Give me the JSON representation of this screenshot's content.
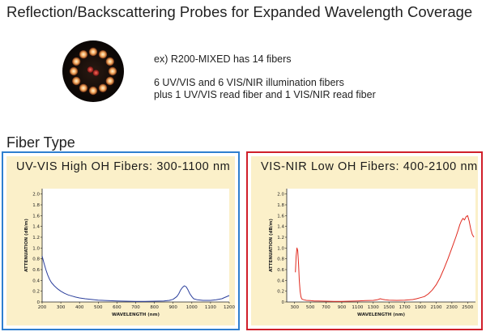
{
  "header": {
    "title": "Reflection/Backscattering Probes for Expanded Wavelength Coverage"
  },
  "description": {
    "line1": "ex) R200-MIXED has 14 fibers",
    "line2": "6 UV/VIS and 6 VIS/NIR illumination fibers",
    "line3": "plus 1 UV/VIS read fiber and 1 VIS/NIR read fiber"
  },
  "section": {
    "title": "Fiber Type"
  },
  "colors": {
    "uv_border": "#2f7fd0",
    "nir_border": "#d01f2a",
    "panel_bg": "#fbf0c9",
    "uv_curve": "#2b3f9c",
    "nir_curve": "#e02a1f"
  },
  "chart_data": [
    {
      "type": "line",
      "title": "UV-VIS High OH Fibers: 300-1100 nm",
      "xlabel": "WAVELENGTH (nm)",
      "ylabel": "ATTENUATION (dB/m)",
      "xlim": [
        200,
        1200
      ],
      "ylim": [
        0,
        2.1
      ],
      "xticks": [
        "200",
        "300",
        "400",
        "500",
        "600",
        "700",
        "800",
        "900",
        "1000",
        "1100",
        "1200"
      ],
      "yticks": [
        "0",
        "0.2",
        "0.4",
        "0.6",
        "0.8",
        "1.0",
        "1.2",
        "1.4",
        "1.6",
        "1.8",
        "2.0"
      ],
      "series": [
        {
          "x": [
            200,
            210,
            220,
            230,
            240,
            250,
            265,
            280,
            300,
            320,
            340,
            360,
            380,
            400,
            430,
            460,
            500,
            550,
            600,
            650,
            700,
            750,
            800,
            850,
            880,
            900,
            920,
            930,
            940,
            950,
            960,
            970,
            980,
            990,
            1000,
            1010,
            1030,
            1060,
            1100,
            1130,
            1160,
            1180,
            1200
          ],
          "y": [
            0.85,
            0.72,
            0.6,
            0.5,
            0.42,
            0.36,
            0.3,
            0.25,
            0.2,
            0.16,
            0.13,
            0.11,
            0.09,
            0.075,
            0.06,
            0.05,
            0.035,
            0.025,
            0.02,
            0.015,
            0.012,
            0.012,
            0.015,
            0.02,
            0.03,
            0.05,
            0.1,
            0.15,
            0.22,
            0.27,
            0.3,
            0.28,
            0.22,
            0.15,
            0.1,
            0.06,
            0.04,
            0.03,
            0.03,
            0.04,
            0.06,
            0.09,
            0.12
          ]
        }
      ],
      "grid": false,
      "legend": "none"
    },
    {
      "type": "line",
      "title": "VIS-NIR Low OH Fibers: 400-2100 nm",
      "xlabel": "WAVELENGTH (nm)",
      "ylabel": "ATTENUATION (dB/m)",
      "xlim": [
        200,
        2600
      ],
      "ylim": [
        0,
        2.1
      ],
      "xticks": [
        "300",
        "500",
        "700",
        "900",
        "1100",
        "1300",
        "1500",
        "1700",
        "1900",
        "2100",
        "2300",
        "2500"
      ],
      "yticks": [
        "0",
        "0.2",
        "0.4",
        "0.6",
        "0.8",
        "1.0",
        "1.2",
        "1.4",
        "1.6",
        "1.8",
        "2.0"
      ],
      "series": [
        {
          "x": [
            310,
            320,
            330,
            340,
            350,
            360,
            370,
            380,
            390,
            400,
            420,
            450,
            500,
            550,
            600,
            700,
            800,
            900,
            1000,
            1100,
            1200,
            1300,
            1350,
            1390,
            1420,
            1450,
            1500,
            1600,
            1700,
            1800,
            1850,
            1900,
            1950,
            2000,
            2050,
            2100,
            2150,
            2200,
            2250,
            2300,
            2350,
            2380,
            2400,
            2420,
            2440,
            2460,
            2480,
            2500,
            2520,
            2540,
            2560,
            2580
          ],
          "y": [
            0.55,
            0.85,
            1.0,
            0.95,
            0.7,
            0.4,
            0.2,
            0.1,
            0.06,
            0.05,
            0.04,
            0.03,
            0.025,
            0.02,
            0.02,
            0.015,
            0.012,
            0.012,
            0.015,
            0.02,
            0.025,
            0.03,
            0.04,
            0.06,
            0.05,
            0.04,
            0.035,
            0.03,
            0.035,
            0.045,
            0.06,
            0.08,
            0.1,
            0.15,
            0.22,
            0.32,
            0.45,
            0.62,
            0.8,
            1.0,
            1.2,
            1.33,
            1.43,
            1.5,
            1.55,
            1.52,
            1.58,
            1.6,
            1.5,
            1.35,
            1.25,
            1.2
          ]
        }
      ],
      "grid": false,
      "legend": "none"
    }
  ]
}
